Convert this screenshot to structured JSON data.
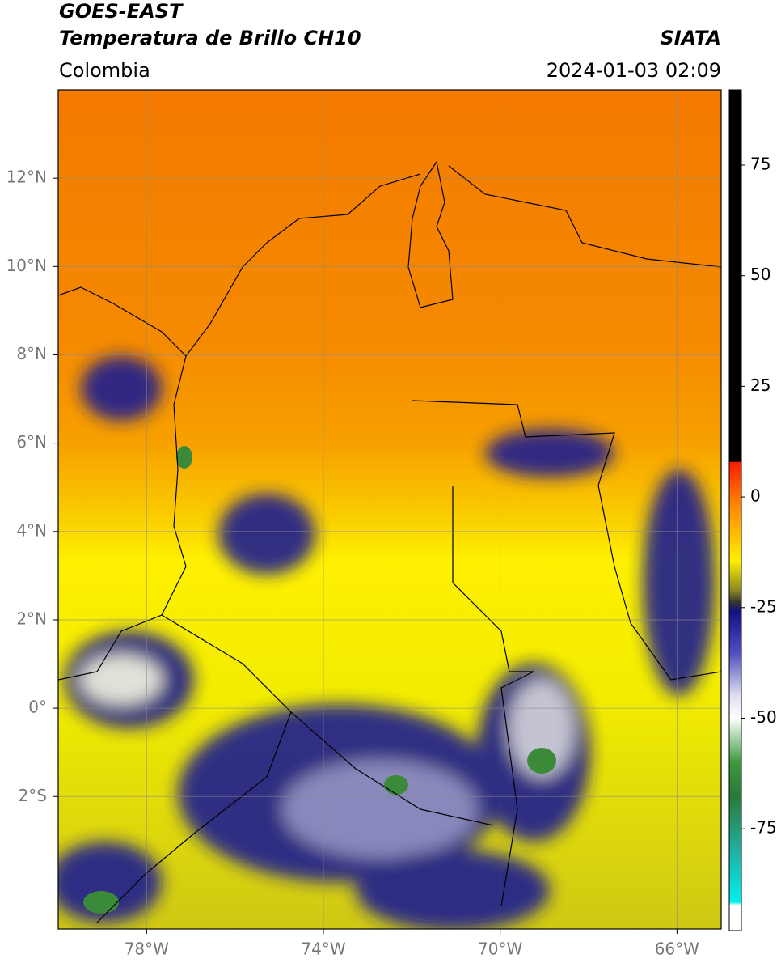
{
  "header": {
    "title": "GOES-EAST",
    "subtitle": "Temperatura de Brillo CH10",
    "region": "Colombia",
    "source": "SIATA",
    "timestamp": "2024-01-03 02:09"
  },
  "map": {
    "xlim": [
      -80,
      -65
    ],
    "ylim": [
      -5,
      14
    ],
    "xticks": [
      {
        "value": -78,
        "label": "78°W"
      },
      {
        "value": -74,
        "label": "74°W"
      },
      {
        "value": -70,
        "label": "70°W"
      },
      {
        "value": -66,
        "label": "66°W"
      }
    ],
    "yticks": [
      {
        "value": 12,
        "label": "12°N"
      },
      {
        "value": 10,
        "label": "10°N"
      },
      {
        "value": 8,
        "label": "8°N"
      },
      {
        "value": 6,
        "label": "6°N"
      },
      {
        "value": 4,
        "label": "4°N"
      },
      {
        "value": 2,
        "label": "2°N"
      },
      {
        "value": 0,
        "label": "0°"
      },
      {
        "value": -2,
        "label": "2°S"
      }
    ],
    "grid": true
  },
  "colorbar": {
    "lim": [
      -98,
      92
    ],
    "ticks": [
      75,
      50,
      25,
      0,
      -25,
      -50,
      -75
    ]
  }
}
